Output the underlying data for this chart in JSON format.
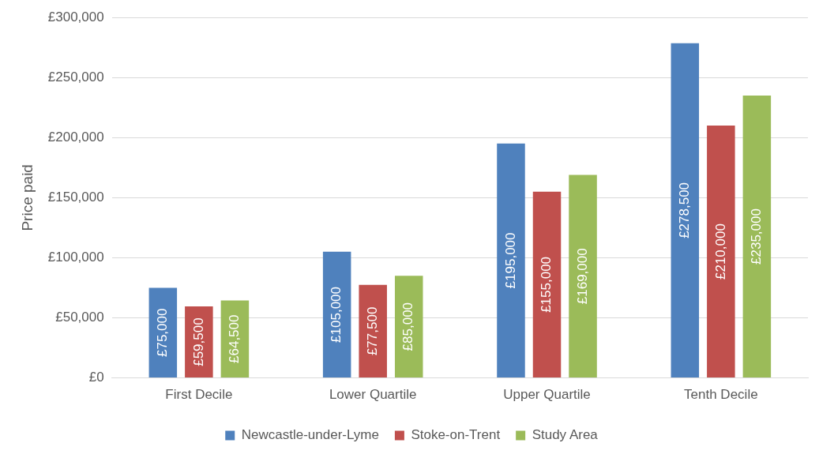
{
  "chart_data": {
    "type": "bar",
    "ylabel": "Price paid",
    "categories": [
      "First Decile",
      "Lower Quartile",
      "Upper Quartile",
      "Tenth Decile"
    ],
    "series": [
      {
        "name": "Newcastle-under-Lyme",
        "color": "#4f81bd",
        "values": [
          75000,
          105000,
          195000,
          278500
        ],
        "value_labels": [
          "£75,000",
          "£105,000",
          "£195,000",
          "£278,500"
        ]
      },
      {
        "name": "Stoke-on-Trent",
        "color": "#c0504d",
        "values": [
          59500,
          77500,
          155000,
          210000
        ],
        "value_labels": [
          "£59,500",
          "£77,500",
          "£155,000",
          "£210,000"
        ]
      },
      {
        "name": "Study Area",
        "color": "#9bbb59",
        "values": [
          64500,
          85000,
          169000,
          235000
        ],
        "value_labels": [
          "£64,500",
          "£85,000",
          "£169,000",
          "£235,000"
        ]
      }
    ],
    "ylim": [
      0,
      300000
    ],
    "yticks": [
      {
        "value": 0,
        "label": "£0"
      },
      {
        "value": 50000,
        "label": "£50,000"
      },
      {
        "value": 100000,
        "label": "£100,000"
      },
      {
        "value": 150000,
        "label": "£150,000"
      },
      {
        "value": 200000,
        "label": "£200,000"
      },
      {
        "value": 250000,
        "label": "£250,000"
      },
      {
        "value": 300000,
        "label": "£300,000"
      }
    ],
    "grid": "y",
    "legend": "bottom"
  }
}
